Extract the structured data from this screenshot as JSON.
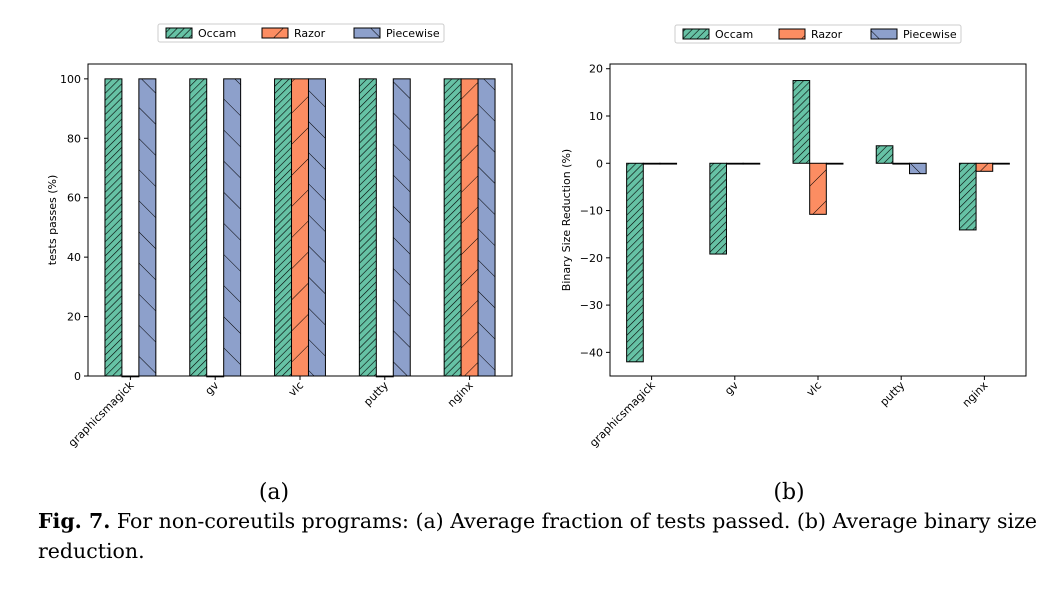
{
  "legend_hatches": {
    "Occam": "////",
    "Razor": "/",
    "Piecewise": "\\"
  },
  "caption": {
    "label": "Fig. 7.",
    "text": "For non-coreutils programs: (a) Average fraction of tests passed. (b) Average binary size reduction."
  },
  "chart_data": [
    {
      "type": "bar",
      "panel_label": "(a)",
      "title": "",
      "xlabel": "",
      "ylabel": "tests passes (%)",
      "categories": [
        "graphicsmagick",
        "gv",
        "vlc",
        "putty",
        "nginx"
      ],
      "series": [
        {
          "name": "Occam",
          "values": [
            100,
            100,
            100,
            100,
            100
          ],
          "color": "#66c2a5"
        },
        {
          "name": "Razor",
          "values": [
            0,
            0,
            100,
            0,
            100
          ],
          "color": "#fc8d62"
        },
        {
          "name": "Piecewise",
          "values": [
            100,
            100,
            100,
            100,
            100
          ],
          "color": "#8da0cb"
        }
      ],
      "ylim": [
        0,
        105
      ],
      "yticks": [
        0,
        20,
        40,
        60,
        80,
        100
      ],
      "grid": false,
      "legend": "top-center"
    },
    {
      "type": "bar",
      "panel_label": "(b)",
      "title": "",
      "xlabel": "",
      "ylabel": "Binary Size Reduction (%)",
      "categories": [
        "graphicsmagick",
        "gv",
        "vlc",
        "putty",
        "nginx"
      ],
      "series": [
        {
          "name": "Occam",
          "values": [
            -42,
            -19.2,
            17.5,
            3.7,
            -14.1
          ],
          "color": "#66c2a5"
        },
        {
          "name": "Razor",
          "values": [
            0,
            0,
            -10.8,
            0,
            -1.7
          ],
          "color": "#fc8d62"
        },
        {
          "name": "Piecewise",
          "values": [
            0,
            0,
            0,
            -2.2,
            0
          ],
          "color": "#8da0cb"
        }
      ],
      "ylim": [
        -45,
        21
      ],
      "yticks": [
        20,
        10,
        0,
        -10,
        -20,
        -30,
        -40
      ],
      "grid": false,
      "legend": "top-center"
    }
  ]
}
